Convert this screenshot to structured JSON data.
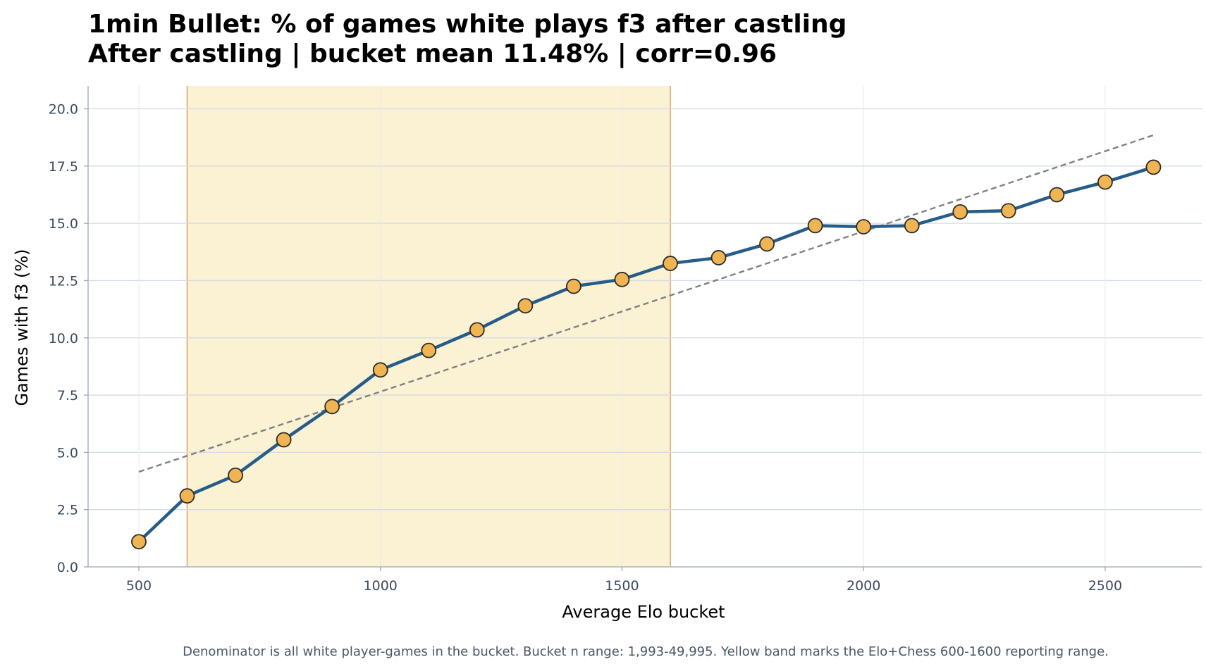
{
  "chart_data": {
    "type": "line",
    "title_lines": [
      "1min Bullet: % of games white plays f3 after castling",
      "After castling | bucket mean 11.48% | corr=0.96"
    ],
    "xlabel": "Average Elo bucket",
    "ylabel": "Games with f3 (%)",
    "footnote": "Denominator is all white player-games in the bucket. Bucket n range: 1,993-49,995. Yellow band marks the Elo+Chess 600-1600 reporting range.",
    "xlim": [
      395,
      2700
    ],
    "ylim": [
      0,
      21
    ],
    "x_ticks": [
      500,
      1000,
      1500,
      2000,
      2500
    ],
    "x_tick_labels": [
      "500",
      "1000",
      "1500",
      "2000",
      "2500"
    ],
    "y_ticks": [
      0,
      2.5,
      5,
      7.5,
      10,
      12.5,
      15,
      17.5,
      20
    ],
    "y_tick_labels": [
      "0.0",
      "2.5",
      "5.0",
      "7.5",
      "10.0",
      "12.5",
      "15.0",
      "17.5",
      "20.0"
    ],
    "grid": true,
    "series": [
      {
        "x": [
          500,
          600,
          700,
          800,
          900,
          1000,
          1100,
          1200,
          1300,
          1400,
          1500,
          1600,
          1700,
          1800,
          1900,
          2000,
          2100,
          2200,
          2300,
          2400,
          2500,
          2600
        ],
        "values": [
          1.1,
          3.1,
          4.0,
          5.55,
          7.0,
          8.6,
          9.45,
          10.35,
          11.4,
          12.25,
          12.55,
          13.25,
          13.5,
          14.1,
          14.9,
          14.85,
          14.9,
          15.5,
          15.55,
          16.25,
          16.8,
          17.45
        ]
      }
    ],
    "trend_line": {
      "x": [
        500,
        2600
      ],
      "y": [
        4.15,
        18.85
      ]
    },
    "band": {
      "x_range": [
        600,
        1600
      ]
    },
    "colors": {
      "line": "#245c8a",
      "marker_fill": "#f0b550",
      "marker_edge": "#2b2b2b",
      "trend": "#808080",
      "band_fill": "#fbf1d3",
      "band_edge": "#e1a86e",
      "grid": "#d4dbe3",
      "axis": "#9aa8b8"
    }
  }
}
